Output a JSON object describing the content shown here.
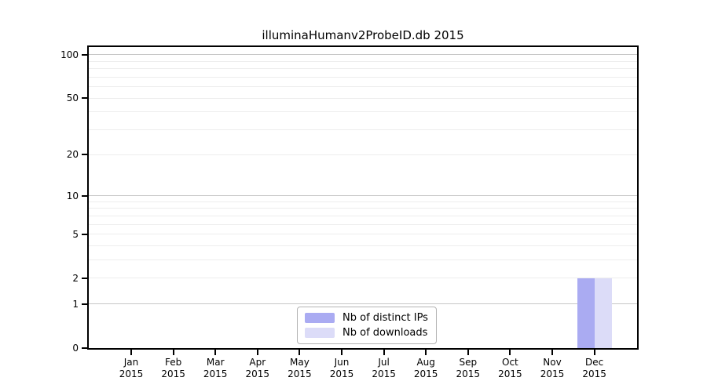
{
  "chart_data": {
    "type": "bar",
    "title": "illuminaHumanv2ProbeID.db 2015",
    "x_categories": [
      "Jan",
      "Feb",
      "Mar",
      "Apr",
      "May",
      "Jun",
      "Jul",
      "Aug",
      "Sep",
      "Oct",
      "Nov",
      "Dec"
    ],
    "x_year": "2015",
    "y_scale": "log1p",
    "y_ticks": [
      0,
      1,
      2,
      5,
      10,
      20,
      50,
      100
    ],
    "y_major_gridlines": [
      1,
      10,
      100
    ],
    "y_minor_gridlines": [
      2,
      3,
      4,
      5,
      6,
      7,
      8,
      9,
      20,
      30,
      40,
      50,
      60,
      70,
      80,
      90
    ],
    "ylim": [
      0,
      113
    ],
    "grid": true,
    "legend_position": "bottom-center",
    "series": [
      {
        "name": "Nb of distinct IPs",
        "color": "#aaabf2",
        "values": [
          0,
          0,
          0,
          0,
          0,
          0,
          0,
          0,
          0,
          0,
          0,
          2
        ]
      },
      {
        "name": "Nb of downloads",
        "color": "#dcdcf8",
        "values": [
          0,
          0,
          0,
          0,
          0,
          0,
          0,
          0,
          0,
          0,
          0,
          2
        ]
      }
    ],
    "colors": {
      "axis": "#000000",
      "grid_major": "#c7c7c7",
      "grid_minor": "#ededed",
      "legend_border": "#b3b3b3"
    }
  }
}
